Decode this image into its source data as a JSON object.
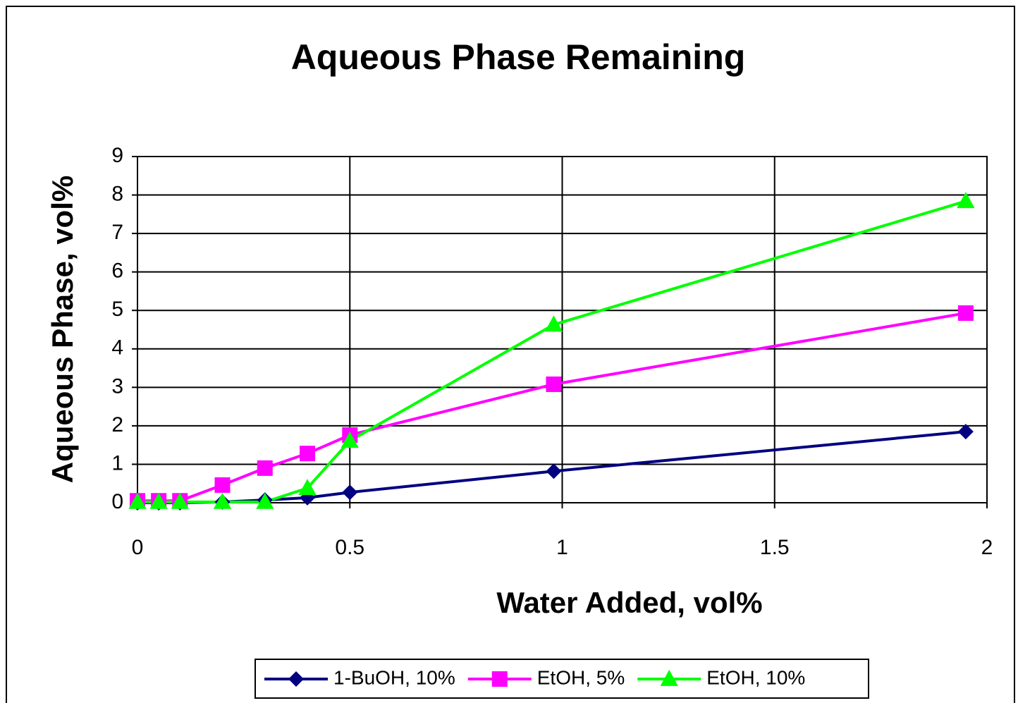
{
  "chart_data": {
    "type": "line",
    "title": "Aqueous Phase Remaining",
    "xlabel": "Water Added, vol%",
    "ylabel": "Aqueous Phase, vol%",
    "x": [
      0,
      0.05,
      0.1,
      0.2,
      0.3,
      0.4,
      0.5,
      0.98,
      1.95
    ],
    "series": [
      {
        "name": "1-BuOH, 10%",
        "color": "#000080",
        "marker": "diamond",
        "values": [
          0,
          0,
          0,
          0.02,
          0.07,
          0.13,
          0.27,
          0.82,
          1.85
        ]
      },
      {
        "name": "EtOH, 5%",
        "color": "#ff00ff",
        "marker": "square",
        "values": [
          0.05,
          0.05,
          0.05,
          0.46,
          0.9,
          1.28,
          1.76,
          3.08,
          4.93
        ]
      },
      {
        "name": "EtOH, 10%",
        "color": "#00ff00",
        "marker": "triangle",
        "values": [
          0.02,
          0.02,
          0.02,
          0.02,
          0.02,
          0.38,
          1.61,
          4.63,
          7.84
        ]
      }
    ],
    "xlim": [
      0,
      2
    ],
    "xticks": [
      0,
      0.5,
      1,
      1.5,
      2
    ],
    "ylim": [
      0,
      9
    ],
    "yticks": [
      0,
      1,
      2,
      3,
      4,
      5,
      6,
      7,
      8,
      9
    ],
    "grid": true,
    "legend": "bottom"
  }
}
